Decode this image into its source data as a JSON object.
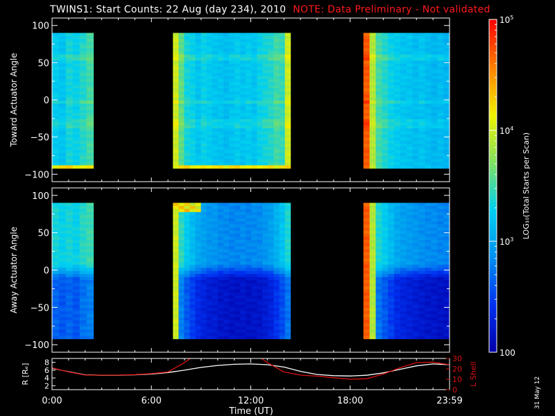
{
  "title": {
    "main": "TWINS1: Start Counts: 22 Aug (day 234), 2010",
    "note": "NOTE: Data Preliminary - Not validated"
  },
  "stamp": "31 May 12",
  "colors": {
    "note": "#ff1a1a",
    "r_line": "#ffffff",
    "l_line": "#dd1111",
    "background": "#000000",
    "colormap": [
      "#0000a8",
      "#0030f0",
      "#0090f0",
      "#00d0f0",
      "#80e060",
      "#f0f000",
      "#ff8000",
      "#ff0000"
    ]
  },
  "chart_data": [
    {
      "type": "heatmap",
      "panel": "toward",
      "ylabel": "Toward Actuator Angle",
      "ylim": [
        -110,
        110
      ],
      "yticks": [
        "100",
        "50",
        "0",
        "−50",
        "−100"
      ],
      "ytick_values": [
        100,
        50,
        0,
        -50,
        -100
      ],
      "xlim_hours": [
        0,
        24
      ],
      "data_y_range": [
        -88,
        90
      ],
      "segments": [
        {
          "start_hr": 0.0,
          "end_hr": 2.5,
          "base_log": 3.3,
          "col_log": [
            3.25,
            3.2,
            3.35,
            3.3,
            3.4,
            3.5
          ],
          "floor_log": 4.1
        },
        {
          "start_hr": 7.3,
          "end_hr": 14.4,
          "base_log": 3.25,
          "col_log": [
            4.0,
            3.6,
            3.35,
            3.3,
            3.2,
            3.3,
            3.25,
            3.2,
            3.2,
            3.15,
            3.2,
            3.25,
            3.2,
            3.25,
            3.2,
            3.3,
            3.35,
            3.4,
            3.5,
            3.45,
            4.0
          ],
          "floor_log": 4.1
        },
        {
          "start_hr": 18.8,
          "end_hr": 24.0,
          "base_log": 3.2,
          "col_log": [
            4.7,
            3.9,
            3.5,
            3.4,
            3.3,
            3.25,
            3.2,
            3.2,
            3.15,
            3.2,
            3.15,
            3.1,
            3.15,
            3.1
          ],
          "floor_log": null
        }
      ]
    },
    {
      "type": "heatmap",
      "panel": "away",
      "ylabel": "Away Actuator Angle",
      "ylim": [
        -110,
        110
      ],
      "yticks": [
        "100",
        "50",
        "0",
        "−50",
        "−100"
      ],
      "ytick_values": [
        100,
        50,
        0,
        -50,
        -100
      ],
      "xlim_hours": [
        0,
        24
      ],
      "data_y_range": [
        -88,
        90
      ],
      "segments": [
        {
          "start_hr": 0.0,
          "end_hr": 2.5,
          "upper_log": 3.3,
          "lower_log": 2.6,
          "col_log": [
            3.3,
            3.2,
            3.3,
            3.2,
            3.4,
            3.5
          ],
          "floor_log": null
        },
        {
          "start_hr": 7.3,
          "end_hr": 14.4,
          "upper_log": 3.2,
          "lower_log": 2.55,
          "col_log": [
            4.0,
            3.6,
            3.3,
            3.1,
            2.9,
            2.8,
            2.7,
            2.7,
            2.6,
            2.6,
            2.55,
            2.55,
            2.6,
            2.55,
            2.6,
            2.6,
            2.7,
            2.8,
            3.0,
            3.2,
            3.5
          ],
          "top_hot_log": 4.4,
          "top_hot_end_hr": 9.0,
          "floor_log": null
        },
        {
          "start_hr": 18.8,
          "end_hr": 24.0,
          "upper_log": 3.2,
          "lower_log": 2.55,
          "col_log": [
            4.7,
            3.9,
            3.5,
            3.3,
            3.1,
            2.9,
            2.8,
            2.75,
            2.7,
            2.65,
            2.6,
            2.6,
            2.55,
            2.55
          ],
          "floor_log": null
        }
      ]
    },
    {
      "type": "line",
      "panel": "orbit",
      "ylabel_left": "R [Rₑ]",
      "ylabel_right": "L Shell",
      "ylim_left": [
        1,
        9
      ],
      "yticks_left": [
        "2",
        "4",
        "6",
        "8"
      ],
      "ylim_right": [
        0,
        30
      ],
      "yticks_right": [
        "0",
        "10",
        "20",
        "30"
      ],
      "xlabel": "Time (UT)",
      "xticks": [
        "0:00",
        "6:00",
        "12:00",
        "18:00",
        "23:59"
      ],
      "xtick_hours": [
        0,
        6,
        12,
        18,
        24
      ],
      "series": [
        {
          "axis": "left",
          "x": [
            0,
            1,
            2,
            3,
            4,
            5,
            6,
            7,
            8,
            9,
            10,
            11,
            12,
            13,
            14,
            15,
            16,
            17,
            18,
            19,
            20,
            21,
            22,
            23,
            24
          ],
          "y": [
            6.5,
            5.6,
            4.8,
            4.7,
            4.7,
            4.8,
            5.0,
            5.4,
            6.0,
            6.7,
            7.2,
            7.5,
            7.6,
            7.4,
            6.8,
            5.7,
            4.9,
            4.6,
            4.5,
            4.7,
            5.3,
            6.2,
            7.1,
            7.6,
            7.4
          ]
        },
        {
          "axis": "right",
          "x": [
            0,
            1,
            2,
            3,
            4,
            5,
            6,
            7,
            8,
            8.7,
            12.3,
            13,
            14,
            15,
            16,
            17,
            18,
            19,
            20,
            21,
            22,
            23,
            24
          ],
          "y": [
            21,
            17,
            14,
            14,
            14,
            14.5,
            15.5,
            17,
            26,
            34,
            34,
            26,
            17,
            14,
            13,
            11.5,
            10,
            10.5,
            15,
            21,
            26,
            26.5,
            24
          ]
        }
      ]
    },
    {
      "type": "colorbar",
      "label": "LOG₁₀(Total Starts per Scan)",
      "scale": "log",
      "range": [
        100,
        100000
      ],
      "tick_labels": [
        {
          "text": "100",
          "exp": "",
          "log": 2
        },
        {
          "text": "10",
          "exp": "3",
          "log": 3
        },
        {
          "text": "10",
          "exp": "4",
          "log": 4
        },
        {
          "text": "10",
          "exp": "5",
          "log": 5
        }
      ]
    }
  ]
}
